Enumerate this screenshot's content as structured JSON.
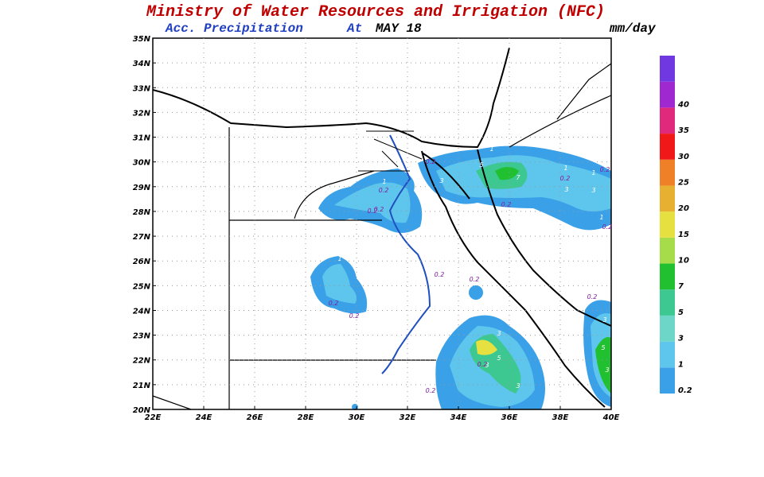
{
  "header": {
    "title": "Ministry of Water Resources and Irrigation (NFC)",
    "product": "Acc. Precipitation",
    "at": "At",
    "date": "MAY 18",
    "units": "mm/day"
  },
  "map": {
    "lat_labels": [
      "20N",
      "21N",
      "22N",
      "23N",
      "24N",
      "25N",
      "26N",
      "27N",
      "28N",
      "29N",
      "30N",
      "31N",
      "32N",
      "33N",
      "34N",
      "35N"
    ],
    "lon_labels": [
      "22E",
      "24E",
      "26E",
      "28E",
      "30E",
      "32E",
      "34E",
      "36E",
      "38E",
      "40E"
    ],
    "contour_labels": [
      "0.2",
      "0.2",
      "1",
      "0.2",
      "0.2",
      "1",
      "0.2",
      "0.2",
      "0.2",
      "0.2",
      "0.2",
      "1",
      "3",
      "5",
      "7",
      "1",
      "3",
      "0.2",
      "1",
      "3",
      "0.2",
      "1",
      "0.2",
      "0.2",
      "3",
      "5",
      "3",
      "3",
      "0.2",
      "3",
      "5",
      "3",
      "0.2"
    ]
  },
  "colorbar": {
    "labels": [
      "0.2",
      "1",
      "3",
      "5",
      "7",
      "10",
      "15",
      "20",
      "25",
      "30",
      "35",
      "40"
    ],
    "colors": [
      "#3aa0e8",
      "#5ec6ec",
      "#6ed6c8",
      "#3cc890",
      "#20c030",
      "#a6dc4a",
      "#e6e040",
      "#e8b030",
      "#f08028",
      "#f01818",
      "#e0287c",
      "#a028d0",
      "#7038e0"
    ]
  }
}
